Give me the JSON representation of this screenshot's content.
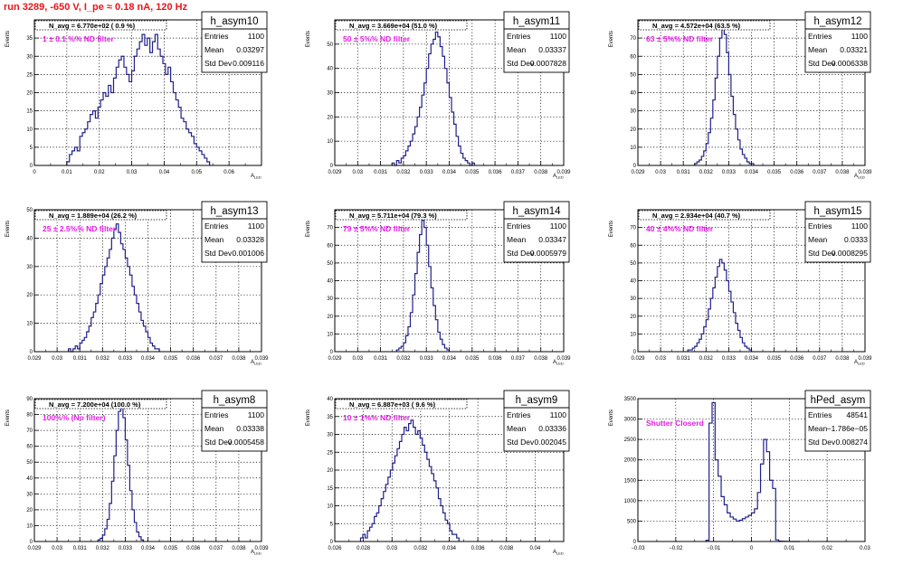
{
  "page": {
    "title": "run 3289,  -650 V, I_pe ≈ 0.18 nA, 120 Hz"
  },
  "colors": {
    "line": "#20208a",
    "note": "#e21ce2",
    "title": "#e8151b",
    "grid": "#000000"
  },
  "stat_labels": {
    "entries": "Entries",
    "mean": "Mean",
    "stddev": "Std Dev"
  },
  "chart_data": [
    {
      "type": "histogram",
      "name": "h_asym10",
      "ylabel": "Events",
      "xlabel": "A_LED",
      "navg": "N_avg = 6.770e+02 ( 0.9 %)",
      "note": "1 ± 0.1 %% ND filter",
      "stats": {
        "entries": "1100",
        "mean": "0.03297",
        "stddev": "0.009116"
      },
      "xlim": [
        0,
        0.07
      ],
      "ylim": [
        0,
        40
      ],
      "xticks": [
        0,
        0.01,
        0.02,
        0.03,
        0.04,
        0.05,
        0.06,
        0.07
      ],
      "xticklabels": [
        "0",
        "0.01",
        "0.02",
        "0.03",
        "0.04",
        "0.05",
        "0.06",
        ""
      ],
      "yticks": [
        0,
        5,
        10,
        15,
        20,
        25,
        30,
        35,
        40
      ],
      "yticklabels": [
        "0",
        "5",
        "10",
        "15",
        "20",
        "25",
        "30",
        "35",
        ""
      ],
      "bins": {
        "start": 0.01,
        "width": 0.0008,
        "counts": [
          1,
          3,
          4,
          5,
          4,
          8,
          9,
          10,
          12,
          14,
          15,
          13,
          16,
          18,
          20,
          19,
          22,
          20,
          24,
          27,
          29,
          30,
          27,
          25,
          23,
          26,
          30,
          32,
          34,
          36,
          33,
          35,
          31,
          34,
          36,
          32,
          30,
          28,
          25,
          27,
          23,
          20,
          18,
          16,
          13,
          12,
          10,
          9,
          8,
          6,
          5,
          4,
          3,
          2,
          1
        ]
      }
    },
    {
      "type": "histogram",
      "name": "h_asym11",
      "ylabel": "Events",
      "xlabel": "A_LED",
      "navg": "N_avg = 3.669e+04 (51.0 %)",
      "note": "50 ± 5%% ND filter",
      "stats": {
        "entries": "1100",
        "mean": "0.03337",
        "stddev": "0.0007828"
      },
      "xlim": [
        0.029,
        0.039
      ],
      "ylim": [
        0,
        60
      ],
      "xticks": [
        0.029,
        0.03,
        0.031,
        0.032,
        0.033,
        0.034,
        0.035,
        0.036,
        0.037,
        0.038,
        0.039
      ],
      "xticklabels": [
        "0.029",
        "0.03",
        "0.031",
        "0.032",
        "0.033",
        "0.034",
        "0.035",
        "0.036",
        "0.037",
        "0.038",
        "0.039"
      ],
      "yticks": [
        0,
        10,
        20,
        30,
        40,
        50,
        60
      ],
      "yticklabels": [
        "0",
        "10",
        "20",
        "30",
        "40",
        "50",
        ""
      ],
      "bins": {
        "start": 0.0315,
        "width": 0.0001,
        "counts": [
          1,
          0,
          2,
          1,
          3,
          4,
          6,
          8,
          10,
          13,
          16,
          20,
          24,
          29,
          34,
          40,
          46,
          50,
          52,
          55,
          53,
          49,
          45,
          40,
          34,
          28,
          22,
          17,
          12,
          8,
          5,
          3,
          2,
          1,
          0,
          1
        ]
      }
    },
    {
      "type": "histogram",
      "name": "h_asym12",
      "ylabel": "Events",
      "xlabel": "A_LED",
      "navg": "N_avg = 4.572e+04 (63.5 %)",
      "note": "63 ± 5%% ND filter",
      "stats": {
        "entries": "1100",
        "mean": "0.03321",
        "stddev": "0.0006338"
      },
      "xlim": [
        0.029,
        0.039
      ],
      "ylim": [
        0,
        80
      ],
      "xticks": [
        0.029,
        0.03,
        0.031,
        0.032,
        0.033,
        0.034,
        0.035,
        0.036,
        0.037,
        0.038,
        0.039
      ],
      "xticklabels": [
        "0.029",
        "0.03",
        "0.031",
        "0.032",
        "0.033",
        "0.034",
        "0.035",
        "0.036",
        "0.037",
        "0.038",
        "0.039"
      ],
      "yticks": [
        0,
        10,
        20,
        30,
        40,
        50,
        60,
        70,
        80
      ],
      "yticklabels": [
        "0",
        "10",
        "20",
        "30",
        "40",
        "50",
        "60",
        "70",
        ""
      ],
      "bins": {
        "start": 0.0315,
        "width": 0.0001,
        "counts": [
          1,
          2,
          3,
          5,
          8,
          12,
          18,
          26,
          36,
          48,
          60,
          70,
          76,
          72,
          62,
          50,
          38,
          28,
          20,
          14,
          9,
          6,
          4,
          2,
          1,
          1
        ]
      }
    },
    {
      "type": "histogram",
      "name": "h_asym13",
      "ylabel": "Events",
      "xlabel": "A_LED",
      "navg": "N_avg = 1.889e+04 (26.2 %)",
      "note": "25 ± 2.5%% ND filter",
      "stats": {
        "entries": "1100",
        "mean": "0.03328",
        "stddev": "0.001006"
      },
      "xlim": [
        0.029,
        0.039
      ],
      "ylim": [
        0,
        50
      ],
      "xticks": [
        0.029,
        0.03,
        0.031,
        0.032,
        0.033,
        0.034,
        0.035,
        0.036,
        0.037,
        0.038,
        0.039
      ],
      "xticklabels": [
        "0.029",
        "0.03",
        "0.031",
        "0.032",
        "0.033",
        "0.034",
        "0.035",
        "0.036",
        "0.037",
        "0.038",
        "0.039"
      ],
      "yticks": [
        0,
        10,
        20,
        30,
        40,
        50
      ],
      "yticklabels": [
        "0",
        "10",
        "20",
        "30",
        "40",
        "50"
      ],
      "bins": {
        "start": 0.0305,
        "width": 0.0001,
        "counts": [
          1,
          0,
          1,
          2,
          1,
          3,
          4,
          5,
          7,
          9,
          12,
          14,
          17,
          20,
          24,
          27,
          30,
          33,
          36,
          40,
          43,
          45,
          42,
          38,
          36,
          33,
          30,
          27,
          23,
          20,
          17,
          14,
          11,
          9,
          7,
          5,
          3,
          2,
          1,
          1
        ]
      }
    },
    {
      "type": "histogram",
      "name": "h_asym14",
      "ylabel": "Events",
      "xlabel": "A_LED",
      "navg": "N_avg = 5.711e+04 (79.3 %)",
      "note": "79 ± 5%% ND filter",
      "stats": {
        "entries": "1100",
        "mean": "0.03347",
        "stddev": "0.0005979"
      },
      "xlim": [
        0.029,
        0.039
      ],
      "ylim": [
        0,
        80
      ],
      "xticks": [
        0.029,
        0.03,
        0.031,
        0.032,
        0.033,
        0.034,
        0.035,
        0.036,
        0.037,
        0.038,
        0.039
      ],
      "xticklabels": [
        "0.029",
        "0.03",
        "0.031",
        "0.032",
        "0.033",
        "0.034",
        "0.035",
        "0.036",
        "0.037",
        "0.038",
        "0.039"
      ],
      "yticks": [
        0,
        10,
        20,
        30,
        40,
        50,
        60,
        70,
        80
      ],
      "yticklabels": [
        "0",
        "10",
        "20",
        "30",
        "40",
        "50",
        "60",
        "70",
        ""
      ],
      "bins": {
        "start": 0.0317,
        "width": 0.0001,
        "counts": [
          1,
          2,
          3,
          5,
          9,
          14,
          22,
          32,
          44,
          56,
          66,
          74,
          70,
          60,
          48,
          36,
          26,
          18,
          11,
          7,
          4,
          2,
          1
        ]
      }
    },
    {
      "type": "histogram",
      "name": "h_asym15",
      "ylabel": "Events",
      "xlabel": "A_LED",
      "navg": "N_avg = 2.934e+04 (40.7 %)",
      "note": "40 ± 4%% ND filter",
      "stats": {
        "entries": "1100",
        "mean": "0.0333",
        "stddev": "0.0008295"
      },
      "xlim": [
        0.029,
        0.039
      ],
      "ylim": [
        0,
        80
      ],
      "xticks": [
        0.029,
        0.03,
        0.031,
        0.032,
        0.033,
        0.034,
        0.035,
        0.036,
        0.037,
        0.038,
        0.039
      ],
      "xticklabels": [
        "0.029",
        "0.03",
        "0.031",
        "0.032",
        "0.033",
        "0.034",
        "0.035",
        "0.036",
        "0.037",
        "0.038",
        "0.039"
      ],
      "yticks": [
        0,
        10,
        20,
        30,
        40,
        50,
        60,
        70,
        80
      ],
      "yticklabels": [
        "0",
        "10",
        "20",
        "30",
        "40",
        "50",
        "60",
        "70",
        ""
      ],
      "bins": {
        "start": 0.0312,
        "width": 0.0001,
        "counts": [
          1,
          1,
          2,
          3,
          5,
          7,
          10,
          14,
          18,
          24,
          30,
          36,
          42,
          48,
          52,
          50,
          46,
          40,
          34,
          28,
          22,
          16,
          12,
          8,
          5,
          3,
          2,
          1
        ]
      }
    },
    {
      "type": "histogram",
      "name": "h_asym8",
      "ylabel": "Events",
      "xlabel": "A_LED",
      "navg": "N_avg = 7.200e+04 (100.0 %)",
      "note": "100%% (No filter)",
      "stats": {
        "entries": "1100",
        "mean": "0.03338",
        "stddev": "0.0005458"
      },
      "xlim": [
        0.029,
        0.039
      ],
      "ylim": [
        0,
        90
      ],
      "xticks": [
        0.029,
        0.03,
        0.031,
        0.032,
        0.033,
        0.034,
        0.035,
        0.036,
        0.037,
        0.038,
        0.039
      ],
      "xticklabels": [
        "0.029",
        "0.03",
        "0.031",
        "0.032",
        "0.033",
        "0.034",
        "0.035",
        "0.036",
        "0.037",
        "0.038",
        "0.039"
      ],
      "yticks": [
        0,
        10,
        20,
        30,
        40,
        50,
        60,
        70,
        80,
        90
      ],
      "yticklabels": [
        "0",
        "10",
        "20",
        "30",
        "40",
        "50",
        "60",
        "70",
        "80",
        "90"
      ],
      "bins": {
        "start": 0.0318,
        "width": 0.0001,
        "counts": [
          1,
          2,
          4,
          8,
          14,
          24,
          38,
          54,
          70,
          82,
          86,
          78,
          64,
          48,
          32,
          20,
          12,
          6,
          3,
          1
        ]
      }
    },
    {
      "type": "histogram",
      "name": "h_asym9",
      "ylabel": "Events",
      "xlabel": "A_LED",
      "navg": "N_avg = 6.887e+03 ( 9.6 %)",
      "note": "10 ± 1%% ND filter",
      "stats": {
        "entries": "1100",
        "mean": "0.03336",
        "stddev": "0.002045"
      },
      "xlim": [
        0.026,
        0.042
      ],
      "ylim": [
        0,
        40
      ],
      "xticks": [
        0.026,
        0.028,
        0.03,
        0.032,
        0.034,
        0.036,
        0.038,
        0.04,
        0.042
      ],
      "xticklabels": [
        "0.026",
        "0.028",
        "0.03",
        "0.032",
        "0.034",
        "0.036",
        "0.038",
        "0.04",
        ""
      ],
      "yticks": [
        0,
        5,
        10,
        15,
        20,
        25,
        30,
        35,
        40
      ],
      "yticklabels": [
        "0",
        "5",
        "10",
        "15",
        "20",
        "25",
        "30",
        "35",
        "40"
      ],
      "bins": {
        "start": 0.0278,
        "width": 0.00016,
        "counts": [
          1,
          2,
          1,
          3,
          4,
          5,
          7,
          8,
          10,
          12,
          14,
          16,
          18,
          20,
          22,
          24,
          26,
          28,
          30,
          32,
          31,
          33,
          34,
          32,
          30,
          31,
          29,
          27,
          25,
          23,
          21,
          19,
          17,
          15,
          12,
          10,
          8,
          6,
          5,
          3,
          2,
          2,
          1
        ]
      }
    },
    {
      "type": "histogram",
      "name": "hPed_asym",
      "ylabel": "Events",
      "xlabel": "",
      "navg": "",
      "note": "Shutter Closerd",
      "stats": {
        "entries": "48541",
        "mean": "−1.786e−05",
        "stddev": "0.008274"
      },
      "xlim": [
        -0.03,
        0.03
      ],
      "ylim": [
        0,
        3500
      ],
      "xticks": [
        -0.03,
        -0.02,
        -0.01,
        0,
        0.01,
        0.02,
        0.03
      ],
      "xticklabels": [
        "−0.03",
        "−0.02",
        "−0.01",
        "0",
        "0.01",
        "0.02",
        "0.03"
      ],
      "yticks": [
        0,
        500,
        1000,
        1500,
        2000,
        2500,
        3000,
        3500
      ],
      "yticklabels": [
        "0",
        "500",
        "1000",
        "1500",
        "2000",
        "2500",
        "3000",
        "3500"
      ],
      "bins": {
        "start": -0.012,
        "width": 0.0008,
        "counts": [
          30,
          2900,
          3400,
          2000,
          1600,
          1100,
          900,
          700,
          600,
          550,
          500,
          520,
          560,
          600,
          640,
          700,
          800,
          1200,
          1900,
          2500,
          2200,
          1500,
          1300,
          40,
          10,
          5,
          2,
          1,
          0,
          0,
          0
        ]
      }
    }
  ]
}
